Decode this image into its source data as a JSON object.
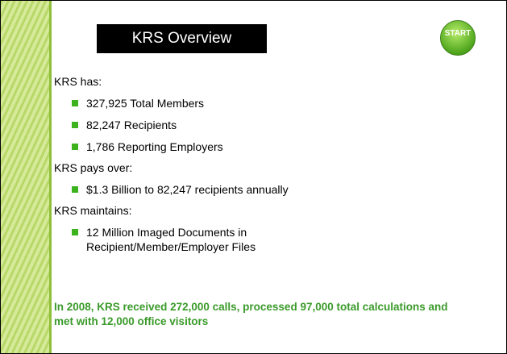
{
  "title": "KRS Overview",
  "button": "START",
  "sections": [
    {
      "heading": "KRS has:",
      "items": [
        "327,925 Total Members",
        "82,247 Recipients",
        "1,786 Reporting Employers"
      ]
    },
    {
      "heading": "KRS pays over:",
      "items": [
        "$1.3 Billion to 82,247 recipients annually"
      ]
    },
    {
      "heading": "KRS maintains:",
      "items": [
        "12 Million Imaged Documents in Recipient/Member/Employer Files"
      ]
    }
  ],
  "footer": "In 2008, KRS received 272,000 calls, processed 97,000 total calculations and met with 12,000 office visitors"
}
